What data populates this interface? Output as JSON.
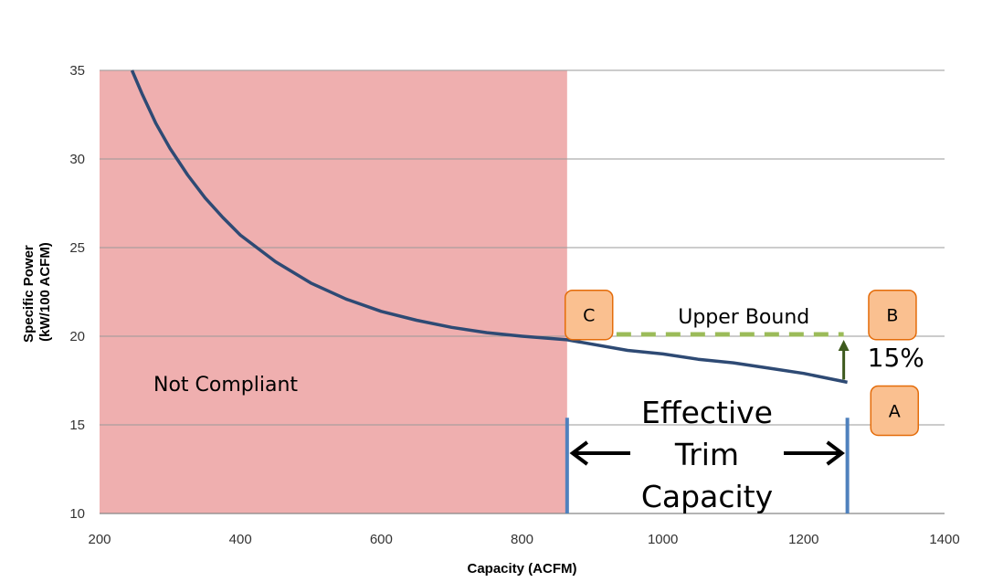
{
  "chart_data": {
    "type": "line",
    "title": "",
    "xlabel": "Capacity (ACFM)",
    "ylabel_line1": "Specific Power",
    "ylabel_line2": "(kW/100 ACFM)",
    "xlim": [
      200,
      1400
    ],
    "ylim": [
      10,
      35
    ],
    "x_ticks": [
      200,
      400,
      600,
      800,
      1000,
      1200,
      1400
    ],
    "y_ticks": [
      10,
      15,
      20,
      25,
      30,
      35
    ],
    "grid": "horizontal",
    "series": [
      {
        "color": "#2E4A74",
        "points": [
          [
            246,
            35.0
          ],
          [
            260,
            33.7
          ],
          [
            280,
            32.0
          ],
          [
            300,
            30.6
          ],
          [
            325,
            29.1
          ],
          [
            350,
            27.8
          ],
          [
            375,
            26.7
          ],
          [
            400,
            25.7
          ],
          [
            450,
            24.2
          ],
          [
            500,
            23.0
          ],
          [
            550,
            22.1
          ],
          [
            600,
            21.4
          ],
          [
            650,
            20.9
          ],
          [
            700,
            20.5
          ],
          [
            750,
            20.2
          ],
          [
            800,
            20.0
          ],
          [
            864,
            19.8
          ],
          [
            950,
            19.2
          ],
          [
            1000,
            19.0
          ],
          [
            1050,
            18.7
          ],
          [
            1100,
            18.5
          ],
          [
            1150,
            18.2
          ],
          [
            1200,
            17.9
          ],
          [
            1262,
            17.4
          ]
        ]
      }
    ],
    "shaded_region": {
      "x": [
        200,
        864
      ],
      "label": "Not Compliant",
      "color": "#EFAFAF"
    },
    "upper_bound": {
      "y": 20.1,
      "x": [
        864,
        1262
      ],
      "label": "Upper Bound",
      "color": "#9BBB59"
    },
    "percent_arrow": {
      "x": 1262,
      "from_y": 17.4,
      "to_y": 20.0,
      "label": "15%",
      "color": "#3E5A1E"
    },
    "trim_markers": {
      "x": [
        864,
        1262
      ],
      "y": [
        10,
        15.4
      ],
      "color": "#4F81BD"
    },
    "effective_trim_label": [
      "Effective",
      "Trim",
      "Capacity"
    ],
    "badges": [
      {
        "label": "C",
        "x": 895,
        "y": 21.2
      },
      {
        "label": "B",
        "x": 1326,
        "y": 21.2
      },
      {
        "label": "A",
        "x": 1329,
        "y": 15.8
      }
    ],
    "badge_fill": "#FAC090",
    "badge_stroke": "#E46C0A"
  }
}
